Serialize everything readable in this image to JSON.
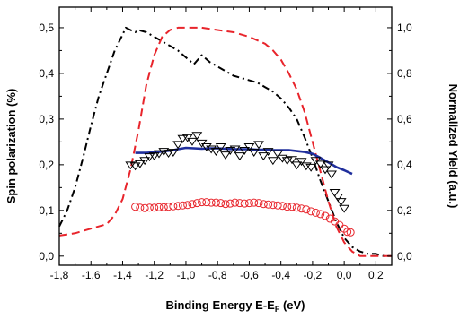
{
  "chart_data": {
    "type": "line",
    "title": "",
    "xlabel": {
      "main": "Binding Energy E-E",
      "sub": "F",
      "suffix": " (eV)"
    },
    "ylabel_left": "Spin polarization (%)",
    "ylabel_right": "Normalized Yield (a.u.)",
    "xlim": [
      -1.8,
      0.3
    ],
    "ylim_left": [
      -0.02,
      0.545
    ],
    "ylim_right": [
      -0.04,
      1.09
    ],
    "x_ticks": [
      -1.8,
      -1.6,
      -1.4,
      -1.2,
      -1.0,
      -0.8,
      -0.6,
      -0.4,
      -0.2,
      0.0,
      0.2
    ],
    "x_tick_labels": [
      "-1,8",
      "-1,6",
      "-1,4",
      "-1,2",
      "-1,0",
      "-0,8",
      "-0,6",
      "-0,4",
      "-0,2",
      "0,0",
      "0,2"
    ],
    "y_left_ticks": [
      0.0,
      0.1,
      0.2,
      0.3,
      0.4,
      0.5
    ],
    "y_left_tick_labels": [
      "0,0",
      "0,1",
      "0,2",
      "0,3",
      "0,4",
      "0,5"
    ],
    "y_right_ticks": [
      0.0,
      0.2,
      0.4,
      0.6,
      0.8,
      1.0
    ],
    "y_right_tick_labels": [
      "0,0",
      "0,2",
      "0,4",
      "0,6",
      "0,8",
      "1,0"
    ],
    "grid": false,
    "legend": "none",
    "series": [
      {
        "axis": "right",
        "style": "dashdot",
        "color": "#000000",
        "x": [
          -1.8,
          -1.75,
          -1.7,
          -1.65,
          -1.6,
          -1.55,
          -1.5,
          -1.45,
          -1.4,
          -1.38,
          -1.35,
          -1.32,
          -1.3,
          -1.25,
          -1.2,
          -1.15,
          -1.1,
          -1.05,
          -1.0,
          -0.95,
          -0.9,
          -0.85,
          -0.8,
          -0.75,
          -0.7,
          -0.65,
          -0.6,
          -0.55,
          -0.5,
          -0.45,
          -0.4,
          -0.35,
          -0.3,
          -0.25,
          -0.2,
          -0.15,
          -0.1,
          -0.05,
          0.0,
          0.05,
          0.1,
          0.15,
          0.2,
          0.25,
          0.3
        ],
        "y": [
          0.13,
          0.2,
          0.3,
          0.43,
          0.57,
          0.7,
          0.8,
          0.9,
          0.97,
          1.0,
          0.99,
          0.98,
          0.99,
          0.98,
          0.96,
          0.94,
          0.92,
          0.9,
          0.87,
          0.84,
          0.88,
          0.85,
          0.83,
          0.81,
          0.79,
          0.78,
          0.77,
          0.76,
          0.74,
          0.72,
          0.69,
          0.65,
          0.6,
          0.52,
          0.43,
          0.33,
          0.24,
          0.15,
          0.08,
          0.04,
          0.02,
          0.01,
          0.01,
          0.0,
          0.0
        ]
      },
      {
        "axis": "right",
        "style": "dashed",
        "color": "#e8242b",
        "x": [
          -1.8,
          -1.7,
          -1.6,
          -1.5,
          -1.45,
          -1.4,
          -1.35,
          -1.3,
          -1.25,
          -1.2,
          -1.15,
          -1.1,
          -1.05,
          -1.0,
          -0.9,
          -0.8,
          -0.7,
          -0.6,
          -0.5,
          -0.45,
          -0.4,
          -0.35,
          -0.3,
          -0.25,
          -0.2,
          -0.15,
          -0.1,
          -0.05,
          0.0,
          0.05,
          0.1,
          0.15,
          0.2,
          0.25,
          0.3
        ],
        "y": [
          0.09,
          0.1,
          0.12,
          0.14,
          0.18,
          0.25,
          0.38,
          0.55,
          0.75,
          0.88,
          0.96,
          0.99,
          1.0,
          1.0,
          1.0,
          0.99,
          0.98,
          0.96,
          0.93,
          0.9,
          0.86,
          0.8,
          0.73,
          0.63,
          0.5,
          0.37,
          0.24,
          0.13,
          0.06,
          0.02,
          0.0,
          0.0,
          0.0,
          0.0,
          0.0
        ]
      },
      {
        "axis": "left",
        "style": "solid",
        "color": "#1f2e9c",
        "x": [
          -1.32,
          -1.25,
          -1.2,
          -1.15,
          -1.1,
          -1.05,
          -1.0,
          -0.95,
          -0.9,
          -0.85,
          -0.8,
          -0.75,
          -0.7,
          -0.65,
          -0.6,
          -0.55,
          -0.5,
          -0.45,
          -0.4,
          -0.35,
          -0.3,
          -0.25,
          -0.2,
          -0.15,
          -0.1,
          -0.05,
          0.0,
          0.05
        ],
        "y": [
          0.226,
          0.226,
          0.227,
          0.229,
          0.231,
          0.234,
          0.237,
          0.236,
          0.235,
          0.236,
          0.236,
          0.235,
          0.234,
          0.234,
          0.234,
          0.233,
          0.233,
          0.232,
          0.232,
          0.232,
          0.23,
          0.228,
          0.224,
          0.215,
          0.205,
          0.195,
          0.188,
          0.18
        ]
      },
      {
        "axis": "left",
        "style": "markers",
        "marker": "triangle-down-open",
        "color": "#000000",
        "x": [
          -1.35,
          -1.32,
          -1.29,
          -1.26,
          -1.23,
          -1.2,
          -1.17,
          -1.14,
          -1.11,
          -1.08,
          -1.05,
          -1.02,
          -0.99,
          -0.96,
          -0.93,
          -0.9,
          -0.87,
          -0.84,
          -0.81,
          -0.78,
          -0.75,
          -0.72,
          -0.69,
          -0.66,
          -0.63,
          -0.6,
          -0.57,
          -0.54,
          -0.51,
          -0.48,
          -0.45,
          -0.42,
          -0.39,
          -0.36,
          -0.33,
          -0.3,
          -0.27,
          -0.24,
          -0.21,
          -0.18,
          -0.15,
          -0.12,
          -0.1,
          -0.08,
          -0.06,
          -0.04,
          -0.02,
          0.0
        ],
        "y": [
          0.2,
          0.198,
          0.203,
          0.21,
          0.218,
          0.22,
          0.225,
          0.23,
          0.226,
          0.228,
          0.245,
          0.258,
          0.26,
          0.252,
          0.265,
          0.248,
          0.24,
          0.235,
          0.23,
          0.24,
          0.222,
          0.232,
          0.235,
          0.22,
          0.232,
          0.24,
          0.228,
          0.245,
          0.22,
          0.23,
          0.21,
          0.225,
          0.215,
          0.21,
          0.212,
          0.2,
          0.208,
          0.198,
          0.195,
          0.21,
          0.202,
          0.19,
          0.2,
          0.18,
          0.14,
          0.13,
          0.12,
          0.105
        ]
      },
      {
        "axis": "left",
        "style": "markers",
        "marker": "circle-open",
        "color": "#e8242b",
        "x": [
          -1.32,
          -1.29,
          -1.26,
          -1.23,
          -1.2,
          -1.17,
          -1.14,
          -1.11,
          -1.08,
          -1.05,
          -1.02,
          -0.99,
          -0.96,
          -0.93,
          -0.9,
          -0.87,
          -0.84,
          -0.81,
          -0.78,
          -0.75,
          -0.72,
          -0.69,
          -0.66,
          -0.63,
          -0.6,
          -0.57,
          -0.54,
          -0.51,
          -0.48,
          -0.45,
          -0.42,
          -0.39,
          -0.36,
          -0.33,
          -0.3,
          -0.27,
          -0.24,
          -0.21,
          -0.18,
          -0.15,
          -0.12,
          -0.09,
          -0.06,
          -0.03,
          0.0,
          0.02,
          0.04
        ],
        "y": [
          0.108,
          0.106,
          0.105,
          0.106,
          0.106,
          0.107,
          0.107,
          0.108,
          0.109,
          0.11,
          0.111,
          0.112,
          0.114,
          0.116,
          0.118,
          0.118,
          0.117,
          0.117,
          0.116,
          0.114,
          0.115,
          0.117,
          0.116,
          0.115,
          0.116,
          0.117,
          0.116,
          0.114,
          0.113,
          0.112,
          0.111,
          0.11,
          0.108,
          0.108,
          0.106,
          0.104,
          0.102,
          0.098,
          0.095,
          0.092,
          0.088,
          0.082,
          0.076,
          0.068,
          0.06,
          0.053,
          0.052
        ]
      }
    ]
  }
}
